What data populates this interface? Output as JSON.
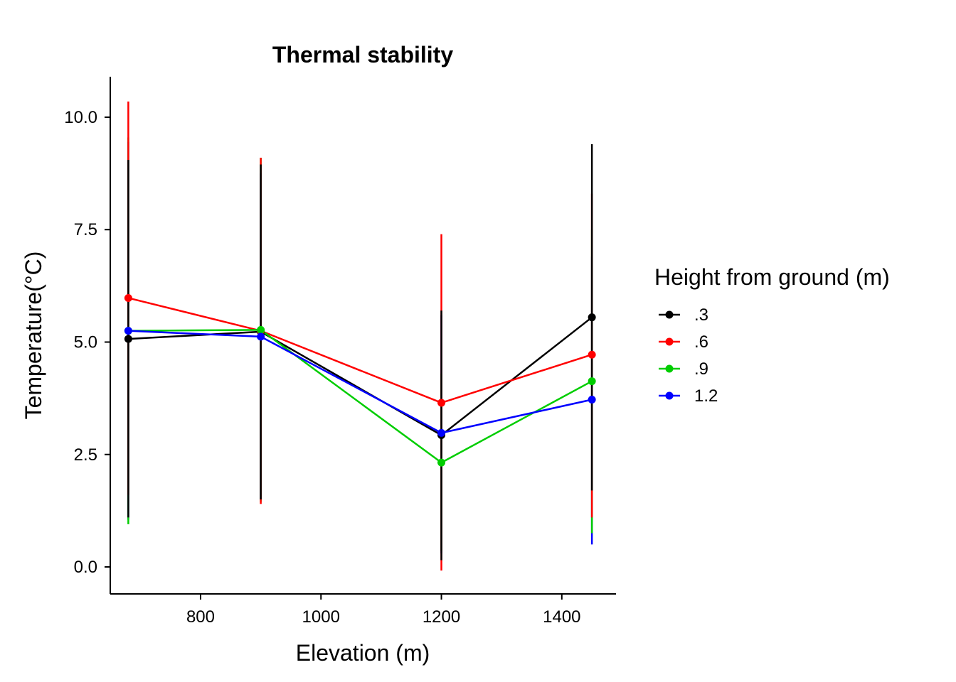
{
  "chart_data": {
    "type": "line",
    "title": "Thermal stability",
    "xlabel": "Elevation (m)",
    "ylabel": "Temperature(°C)",
    "x": [
      680,
      900,
      1200,
      1450
    ],
    "xlim": [
      650,
      1490
    ],
    "ylim": [
      -0.6,
      10.9
    ],
    "xticks": [
      800,
      1000,
      1200,
      1400
    ],
    "xtick_labels": [
      "800",
      "1000",
      "1200",
      "1400"
    ],
    "yticks": [
      0,
      2.5,
      5,
      7.5,
      10
    ],
    "ytick_labels": [
      "0.0",
      "2.5",
      "5.0",
      "7.5",
      "10.0"
    ],
    "grid": false,
    "legend": {
      "title": "Height from ground (m)",
      "position": "right"
    },
    "series": [
      {
        "name": ".3",
        "color": "#000000",
        "values": [
          5.07,
          5.23,
          2.93,
          5.55
        ],
        "lower": [
          1.1,
          1.5,
          0.15,
          1.7
        ],
        "upper": [
          9.05,
          8.95,
          5.7,
          9.4
        ]
      },
      {
        "name": ".6",
        "color": "#FF0000",
        "values": [
          5.98,
          5.25,
          3.65,
          4.72
        ],
        "lower": [
          1.6,
          1.4,
          -0.08,
          1.1
        ],
        "upper": [
          10.35,
          9.1,
          7.4,
          8.3
        ]
      },
      {
        "name": ".9",
        "color": "#00CD00",
        "values": [
          5.25,
          5.27,
          2.32,
          4.13
        ],
        "lower": [
          0.95,
          1.45,
          0.35,
          0.75
        ],
        "upper": [
          9.55,
          9.1,
          4.3,
          7.5
        ]
      },
      {
        "name": "1.2",
        "color": "#0000FF",
        "values": [
          5.25,
          5.12,
          2.98,
          3.72
        ],
        "lower": [
          1.05,
          1.5,
          0.3,
          0.5
        ],
        "upper": [
          9.45,
          8.75,
          5.6,
          6.9
        ]
      }
    ]
  }
}
